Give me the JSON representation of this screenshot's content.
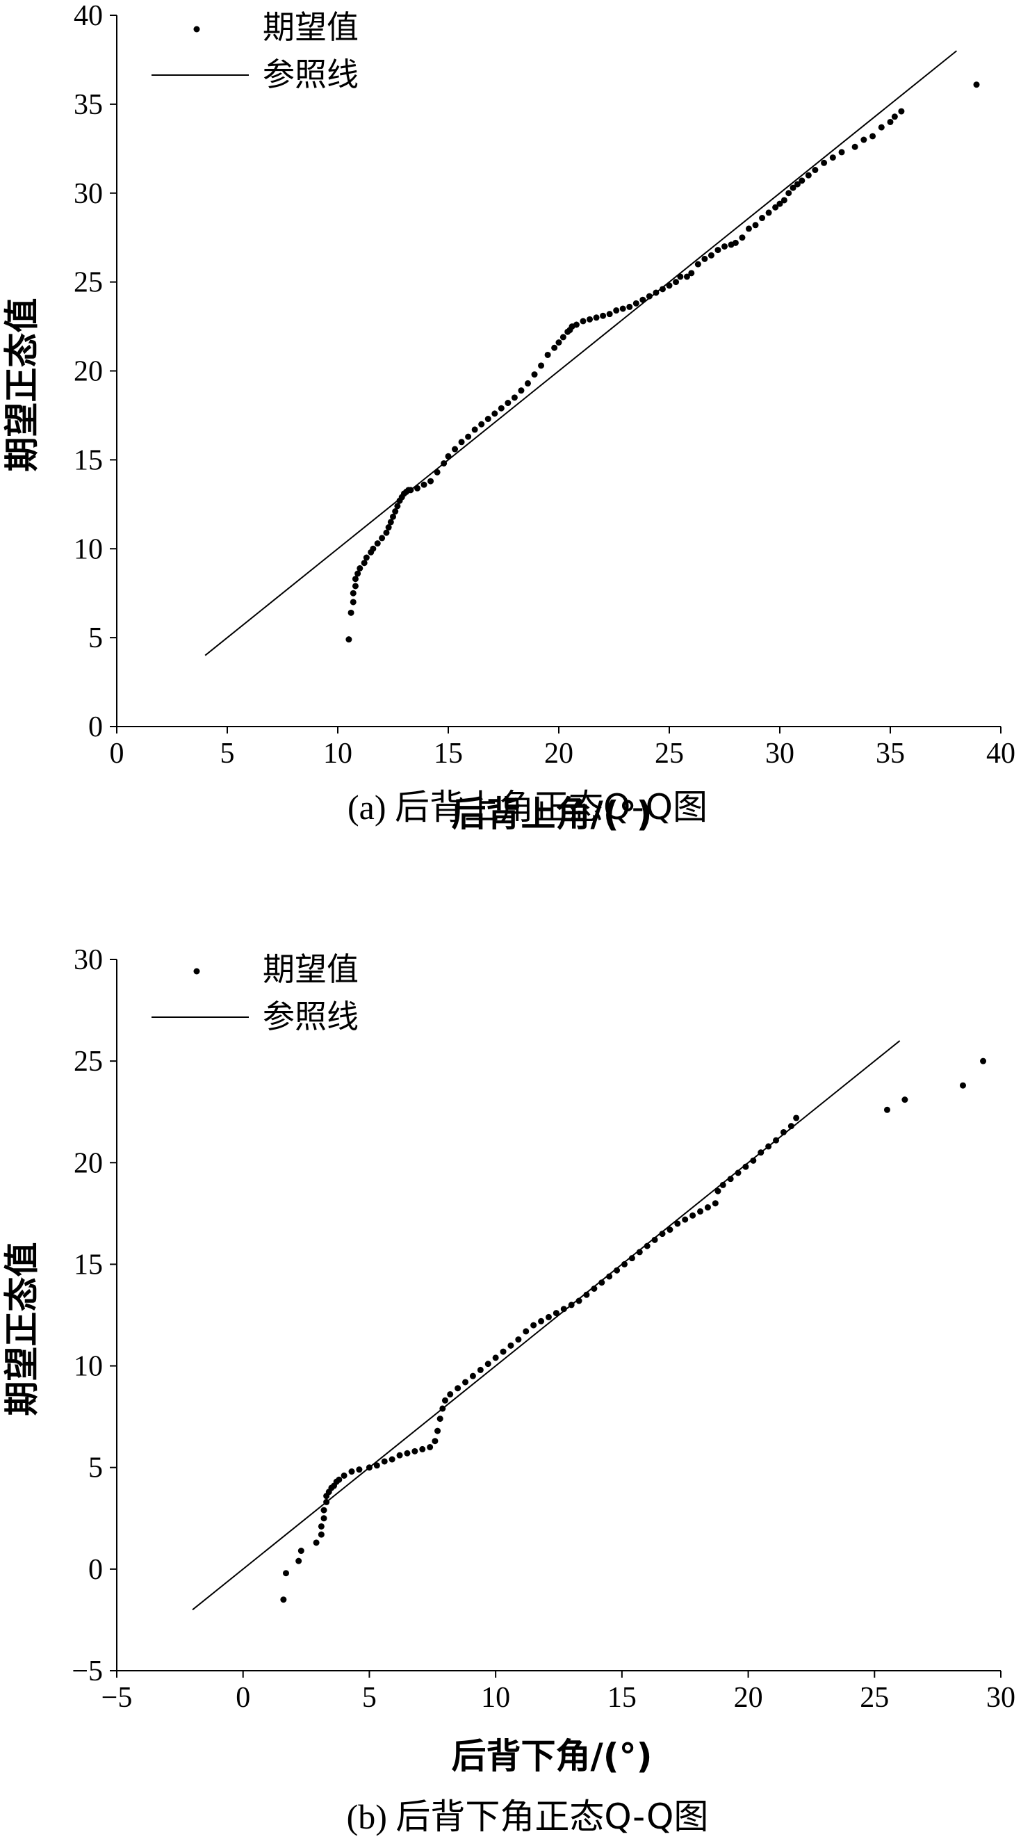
{
  "chart_data": [
    {
      "type": "scatter",
      "xlabel": "后背上角/(°)",
      "ylabel": "期望正态值",
      "xlim": [
        0,
        40
      ],
      "ylim": [
        0,
        40
      ],
      "xticks": [
        0,
        5,
        10,
        15,
        20,
        25,
        30,
        35,
        40
      ],
      "yticks": [
        0,
        5,
        10,
        15,
        20,
        25,
        30,
        35,
        40
      ],
      "legend": [
        "期望值",
        "参照线"
      ],
      "legend_position": "top-left",
      "caption_label": "(a)",
      "caption_text": "后背上角正态Q-Q图",
      "reference_line": {
        "x": [
          4,
          38
        ],
        "y": [
          4,
          38
        ]
      },
      "series": [
        {
          "name": "期望值",
          "x": [
            10.5,
            10.6,
            10.7,
            10.7,
            10.8,
            10.8,
            10.9,
            11.0,
            11.2,
            11.3,
            11.5,
            11.6,
            11.8,
            12.0,
            12.2,
            12.3,
            12.4,
            12.5,
            12.6,
            12.7,
            12.8,
            12.9,
            13.0,
            13.1,
            13.2,
            13.3,
            13.6,
            13.9,
            14.2,
            14.5,
            14.8,
            15.0,
            15.3,
            15.6,
            15.9,
            16.2,
            16.5,
            16.8,
            17.1,
            17.4,
            17.7,
            18.0,
            18.3,
            18.6,
            18.9,
            19.2,
            19.5,
            19.8,
            20.0,
            20.2,
            20.4,
            20.5,
            20.6,
            20.8,
            21.1,
            21.4,
            21.7,
            22.0,
            22.3,
            22.6,
            22.9,
            23.2,
            23.5,
            23.8,
            24.1,
            24.4,
            24.7,
            25.0,
            25.3,
            25.5,
            25.8,
            26.0,
            26.3,
            26.6,
            26.9,
            27.2,
            27.5,
            27.8,
            28.0,
            28.3,
            28.6,
            28.9,
            29.2,
            29.5,
            29.8,
            30.0,
            30.2,
            30.4,
            30.6,
            30.8,
            31.0,
            31.3,
            31.6,
            32.0,
            32.4,
            32.8,
            33.4,
            33.8,
            34.2,
            34.6,
            35.0,
            35.2,
            35.5,
            38.9
          ],
          "y": [
            4.9,
            6.4,
            7.0,
            7.5,
            7.9,
            8.3,
            8.6,
            8.9,
            9.2,
            9.5,
            9.8,
            10.0,
            10.3,
            10.6,
            10.9,
            11.2,
            11.5,
            11.8,
            12.1,
            12.4,
            12.7,
            12.9,
            13.1,
            13.2,
            13.3,
            13.3,
            13.4,
            13.6,
            13.8,
            14.3,
            14.8,
            15.2,
            15.6,
            16.0,
            16.3,
            16.7,
            17.0,
            17.3,
            17.6,
            17.9,
            18.2,
            18.5,
            18.9,
            19.3,
            19.8,
            20.3,
            20.9,
            21.3,
            21.6,
            21.9,
            22.2,
            22.3,
            22.5,
            22.6,
            22.8,
            22.9,
            23.0,
            23.1,
            23.2,
            23.4,
            23.5,
            23.6,
            23.8,
            24.0,
            24.2,
            24.4,
            24.6,
            24.8,
            25.0,
            25.3,
            25.3,
            25.5,
            26.0,
            26.3,
            26.5,
            26.8,
            27.0,
            27.1,
            27.2,
            27.5,
            28.0,
            28.2,
            28.6,
            28.9,
            29.2,
            29.4,
            29.6,
            30.0,
            30.3,
            30.5,
            30.7,
            31.0,
            31.3,
            31.7,
            32.0,
            32.3,
            32.6,
            33.0,
            33.2,
            33.7,
            34.0,
            34.3,
            34.6,
            36.1
          ]
        }
      ]
    },
    {
      "type": "scatter",
      "xlabel": "后背下角/(°)",
      "ylabel": "期望正态值",
      "xlim": [
        -5,
        30
      ],
      "ylim": [
        -5,
        30
      ],
      "xticks": [
        -5,
        0,
        5,
        10,
        15,
        20,
        25,
        30
      ],
      "yticks": [
        -5,
        0,
        5,
        10,
        15,
        20,
        25,
        30
      ],
      "xtick_labels": [
        "−5",
        "0",
        "5",
        "10",
        "15",
        "20",
        "25",
        "30"
      ],
      "ytick_labels": [
        "−5",
        "0",
        "5",
        "10",
        "15",
        "20",
        "25",
        "30"
      ],
      "legend": [
        "期望值",
        "参照线"
      ],
      "legend_position": "top-left",
      "caption_label": "(b)",
      "caption_text": "后背下角正态Q-Q图",
      "reference_line": {
        "x": [
          -2,
          26
        ],
        "y": [
          -2,
          26
        ]
      },
      "series": [
        {
          "name": "期望值",
          "x": [
            1.6,
            1.7,
            2.2,
            2.3,
            2.9,
            3.1,
            3.1,
            3.2,
            3.2,
            3.3,
            3.3,
            3.4,
            3.5,
            3.6,
            3.7,
            3.8,
            4.0,
            4.3,
            4.6,
            5.0,
            5.3,
            5.6,
            5.9,
            6.2,
            6.5,
            6.8,
            7.1,
            7.4,
            7.6,
            7.7,
            7.8,
            7.9,
            8.0,
            8.2,
            8.5,
            8.8,
            9.1,
            9.4,
            9.7,
            10.0,
            10.3,
            10.6,
            10.9,
            11.2,
            11.5,
            11.8,
            12.1,
            12.4,
            12.7,
            13.0,
            13.3,
            13.6,
            13.9,
            14.2,
            14.5,
            14.8,
            15.1,
            15.4,
            15.7,
            16.0,
            16.3,
            16.6,
            16.9,
            17.2,
            17.5,
            17.8,
            18.1,
            18.4,
            18.7,
            18.8,
            19.0,
            19.3,
            19.6,
            19.9,
            20.2,
            20.5,
            20.8,
            21.1,
            21.4,
            21.7,
            21.9,
            25.5,
            26.2,
            28.5,
            29.3
          ],
          "y": [
            -1.5,
            -0.2,
            0.4,
            0.9,
            1.3,
            1.7,
            2.1,
            2.5,
            2.9,
            3.3,
            3.6,
            3.8,
            4.0,
            4.1,
            4.3,
            4.4,
            4.6,
            4.8,
            4.9,
            5.0,
            5.1,
            5.3,
            5.4,
            5.6,
            5.7,
            5.8,
            5.9,
            6.0,
            6.3,
            6.8,
            7.4,
            7.9,
            8.3,
            8.6,
            8.9,
            9.2,
            9.5,
            9.8,
            10.1,
            10.4,
            10.7,
            11.0,
            11.3,
            11.7,
            12.0,
            12.2,
            12.4,
            12.6,
            12.8,
            13.0,
            13.2,
            13.5,
            13.8,
            14.1,
            14.4,
            14.7,
            15.0,
            15.3,
            15.6,
            15.9,
            16.2,
            16.5,
            16.7,
            17.0,
            17.2,
            17.4,
            17.6,
            17.8,
            18.0,
            18.6,
            18.9,
            19.2,
            19.5,
            19.8,
            20.1,
            20.5,
            20.8,
            21.1,
            21.5,
            21.8,
            22.2,
            22.6,
            23.1,
            23.8,
            25.0
          ]
        }
      ]
    }
  ]
}
